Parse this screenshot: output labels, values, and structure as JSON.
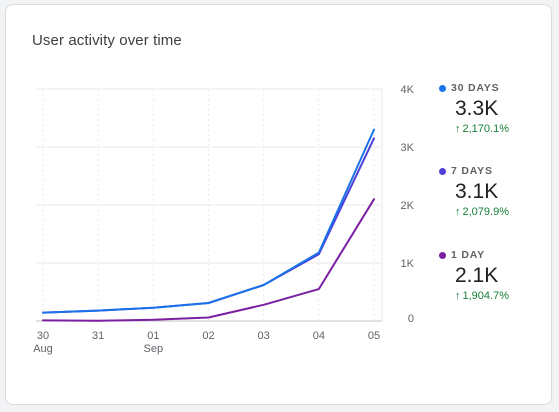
{
  "card": {
    "title": "User activity over time"
  },
  "legend": [
    {
      "label": "30 DAYS",
      "value": "3.3K",
      "change": "2,170.1%",
      "color": "#1a73e8"
    },
    {
      "label": "7 DAYS",
      "value": "3.1K",
      "change": "2,079.9%",
      "color": "#4e3fd9"
    },
    {
      "label": "1 DAY",
      "value": "2.1K",
      "change": "1,904.7%",
      "color": "#7b1fa2"
    }
  ],
  "chart_data": {
    "type": "line",
    "title": "User activity over time",
    "x": [
      "30",
      "31",
      "01",
      "02",
      "03",
      "04",
      "05"
    ],
    "x_sublabels": [
      "Aug",
      "",
      "Sep",
      "",
      "",
      "",
      ""
    ],
    "ylim": [
      0,
      4000
    ],
    "yticks": [
      0,
      1000,
      2000,
      3000,
      4000
    ],
    "ytick_labels": [
      "0",
      "1K",
      "2K",
      "3K",
      "4K"
    ],
    "grid": true,
    "y_axis_position": "right",
    "legend_position": "right",
    "series": [
      {
        "name": "30 DAYS",
        "color": "#1a73e8",
        "values": [
          145,
          180,
          230,
          310,
          620,
          1180,
          3300
        ]
      },
      {
        "name": "7 DAYS",
        "color": "#4e3fd9",
        "values": [
          145,
          180,
          230,
          310,
          620,
          1150,
          3150
        ]
      },
      {
        "name": "1 DAY",
        "color": "#7b1fa2",
        "values": [
          10,
          5,
          20,
          60,
          280,
          550,
          2100
        ]
      }
    ]
  }
}
